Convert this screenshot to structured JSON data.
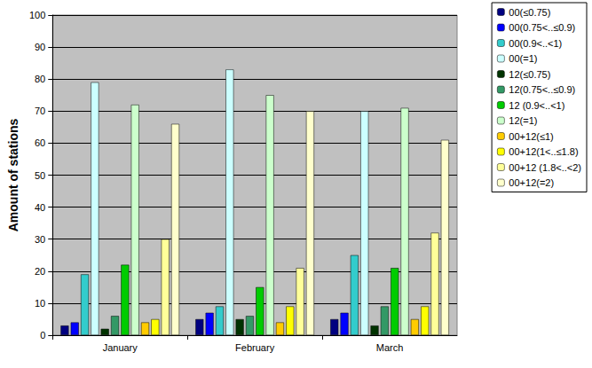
{
  "chart_data": {
    "type": "bar",
    "y_label": "Amount of stations",
    "categories": [
      "January",
      "February",
      "March"
    ],
    "series": [
      {
        "name": "00(≤0.75)",
        "color": "#000080",
        "values": [
          3,
          5,
          5
        ]
      },
      {
        "name": "00(0.75<..≤0.9)",
        "color": "#0000FF",
        "values": [
          4,
          7,
          7
        ]
      },
      {
        "name": "00(0.9<..<1)",
        "color": "#33CCCC",
        "values": [
          19,
          9,
          25
        ]
      },
      {
        "name": "00(=1)",
        "color": "#CCFFFF",
        "values": [
          79,
          83,
          70
        ]
      },
      {
        "name": "12(≤0.75)",
        "color": "#003300",
        "values": [
          2,
          5,
          3
        ]
      },
      {
        "name": "12(0.75<..≤0.9)",
        "color": "#339966",
        "values": [
          6,
          6,
          9
        ]
      },
      {
        "name": "12 (0.9<..<1)",
        "color": "#00CC00",
        "values": [
          22,
          15,
          21
        ]
      },
      {
        "name": "12(=1)",
        "color": "#CCFFCC",
        "values": [
          72,
          75,
          71
        ]
      },
      {
        "name": "00+12(≤1)",
        "color": "#FFCC00",
        "values": [
          4,
          4,
          5
        ]
      },
      {
        "name": "00+12(1<..≤1.8)",
        "color": "#FFFF00",
        "values": [
          5,
          9,
          9
        ]
      },
      {
        "name": "00+12 (1.8<..<2)",
        "color": "#FFFF99",
        "values": [
          30,
          21,
          32
        ]
      },
      {
        "name": "00+12(=2)",
        "color": "#FFFFCC",
        "values": [
          66,
          70,
          61
        ]
      }
    ],
    "ylim": [
      0,
      100
    ],
    "yticks": [
      0,
      10,
      20,
      30,
      40,
      50,
      60,
      70,
      80,
      90,
      100
    ],
    "grid": true,
    "legend": "right"
  }
}
